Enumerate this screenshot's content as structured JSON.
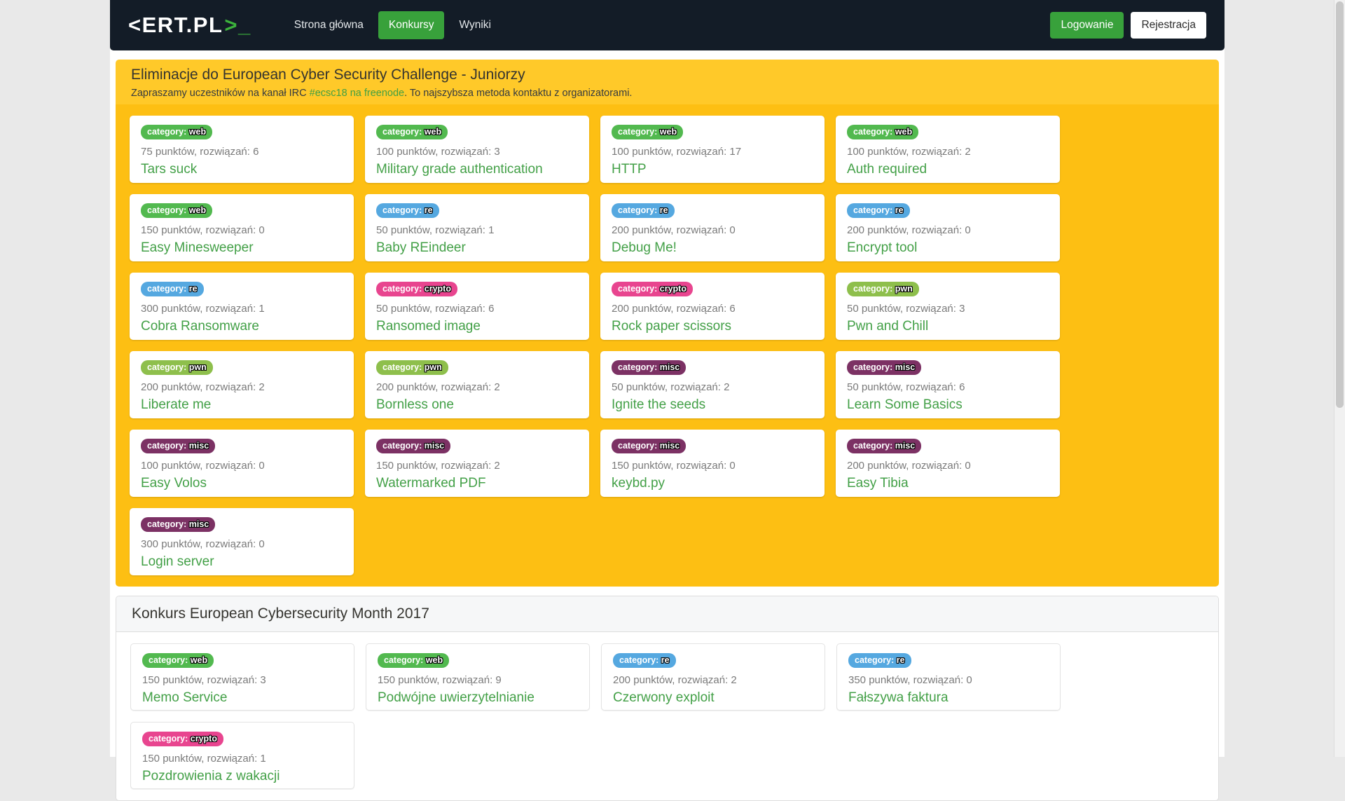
{
  "navbar": {
    "logo_white": "<ERT.PL",
    "logo_green": ">_",
    "links": [
      {
        "label": "Strona główna",
        "active": false
      },
      {
        "label": "Konkursy",
        "active": true
      },
      {
        "label": "Wyniki",
        "active": false
      }
    ],
    "login_label": "Logowanie",
    "register_label": "Rejestracja"
  },
  "category_label": "category:",
  "badge_colors": {
    "web": "#52b94f",
    "re": "#55a8e0",
    "crypto": "#e8458f",
    "pwn": "#8ebf4c",
    "misc": "#7c3164"
  },
  "accent_colors": {
    "navbar_bg": "#131c27",
    "button_green": "#38a13b",
    "panel_warning_heading": "#ffc929",
    "panel_warning_body": "#fdbf13",
    "link_green": "#43a047"
  },
  "sections": [
    {
      "title": "Eliminacje do European Cyber Security Challenge - Juniorzy",
      "subtitle_prefix": "Zapraszamy uczestników na kanał IRC ",
      "subtitle_link": "#ecsc18 na freenode",
      "subtitle_suffix": ". To najszybsza metoda kontaktu z organizatorami.",
      "challenges": [
        {
          "category": "web",
          "points": "75 punktów, rozwiązań: 6",
          "title": "Tars suck"
        },
        {
          "category": "web",
          "points": "100 punktów, rozwiązań: 3",
          "title": "Military grade authentication"
        },
        {
          "category": "web",
          "points": "100 punktów, rozwiązań: 17",
          "title": "HTTP"
        },
        {
          "category": "web",
          "points": "100 punktów, rozwiązań: 2",
          "title": "Auth required"
        },
        {
          "category": "web",
          "points": "150 punktów, rozwiązań: 0",
          "title": "Easy Minesweeper"
        },
        {
          "category": "re",
          "points": "50 punktów, rozwiązań: 1",
          "title": "Baby REindeer"
        },
        {
          "category": "re",
          "points": "200 punktów, rozwiązań: 0",
          "title": "Debug Me!"
        },
        {
          "category": "re",
          "points": "200 punktów, rozwiązań: 0",
          "title": "Encrypt tool"
        },
        {
          "category": "re",
          "points": "300 punktów, rozwiązań: 1",
          "title": "Cobra Ransomware"
        },
        {
          "category": "crypto",
          "points": "50 punktów, rozwiązań: 6",
          "title": "Ransomed image"
        },
        {
          "category": "crypto",
          "points": "200 punktów, rozwiązań: 6",
          "title": "Rock paper scissors"
        },
        {
          "category": "pwn",
          "points": "50 punktów, rozwiązań: 3",
          "title": "Pwn and Chill"
        },
        {
          "category": "pwn",
          "points": "200 punktów, rozwiązań: 2",
          "title": "Liberate me"
        },
        {
          "category": "pwn",
          "points": "200 punktów, rozwiązań: 2",
          "title": "Bornless one"
        },
        {
          "category": "misc",
          "points": "50 punktów, rozwiązań: 2",
          "title": "Ignite the seeds"
        },
        {
          "category": "misc",
          "points": "50 punktów, rozwiązań: 6",
          "title": "Learn Some Basics"
        },
        {
          "category": "misc",
          "points": "100 punktów, rozwiązań: 0",
          "title": "Easy Volos"
        },
        {
          "category": "misc",
          "points": "150 punktów, rozwiązań: 2",
          "title": "Watermarked PDF"
        },
        {
          "category": "misc",
          "points": "150 punktów, rozwiązań: 0",
          "title": "keybd.py"
        },
        {
          "category": "misc",
          "points": "200 punktów, rozwiązań: 0",
          "title": "Easy Tibia"
        },
        {
          "category": "misc",
          "points": "300 punktów, rozwiązań: 0",
          "title": "Login server"
        }
      ]
    },
    {
      "title": "Konkurs European Cybersecurity Month 2017",
      "challenges": [
        {
          "category": "web",
          "points": "150 punktów, rozwiązań: 3",
          "title": "Memo Service"
        },
        {
          "category": "web",
          "points": "150 punktów, rozwiązań: 9",
          "title": "Podwójne uwierzytelnianie"
        },
        {
          "category": "re",
          "points": "200 punktów, rozwiązań: 2",
          "title": "Czerwony exploit"
        },
        {
          "category": "re",
          "points": "350 punktów, rozwiązań: 0",
          "title": "Fałszywa faktura"
        },
        {
          "category": "crypto",
          "points": "150 punktów, rozwiązań: 1",
          "title": "Pozdrowienia z wakacji"
        }
      ]
    }
  ]
}
